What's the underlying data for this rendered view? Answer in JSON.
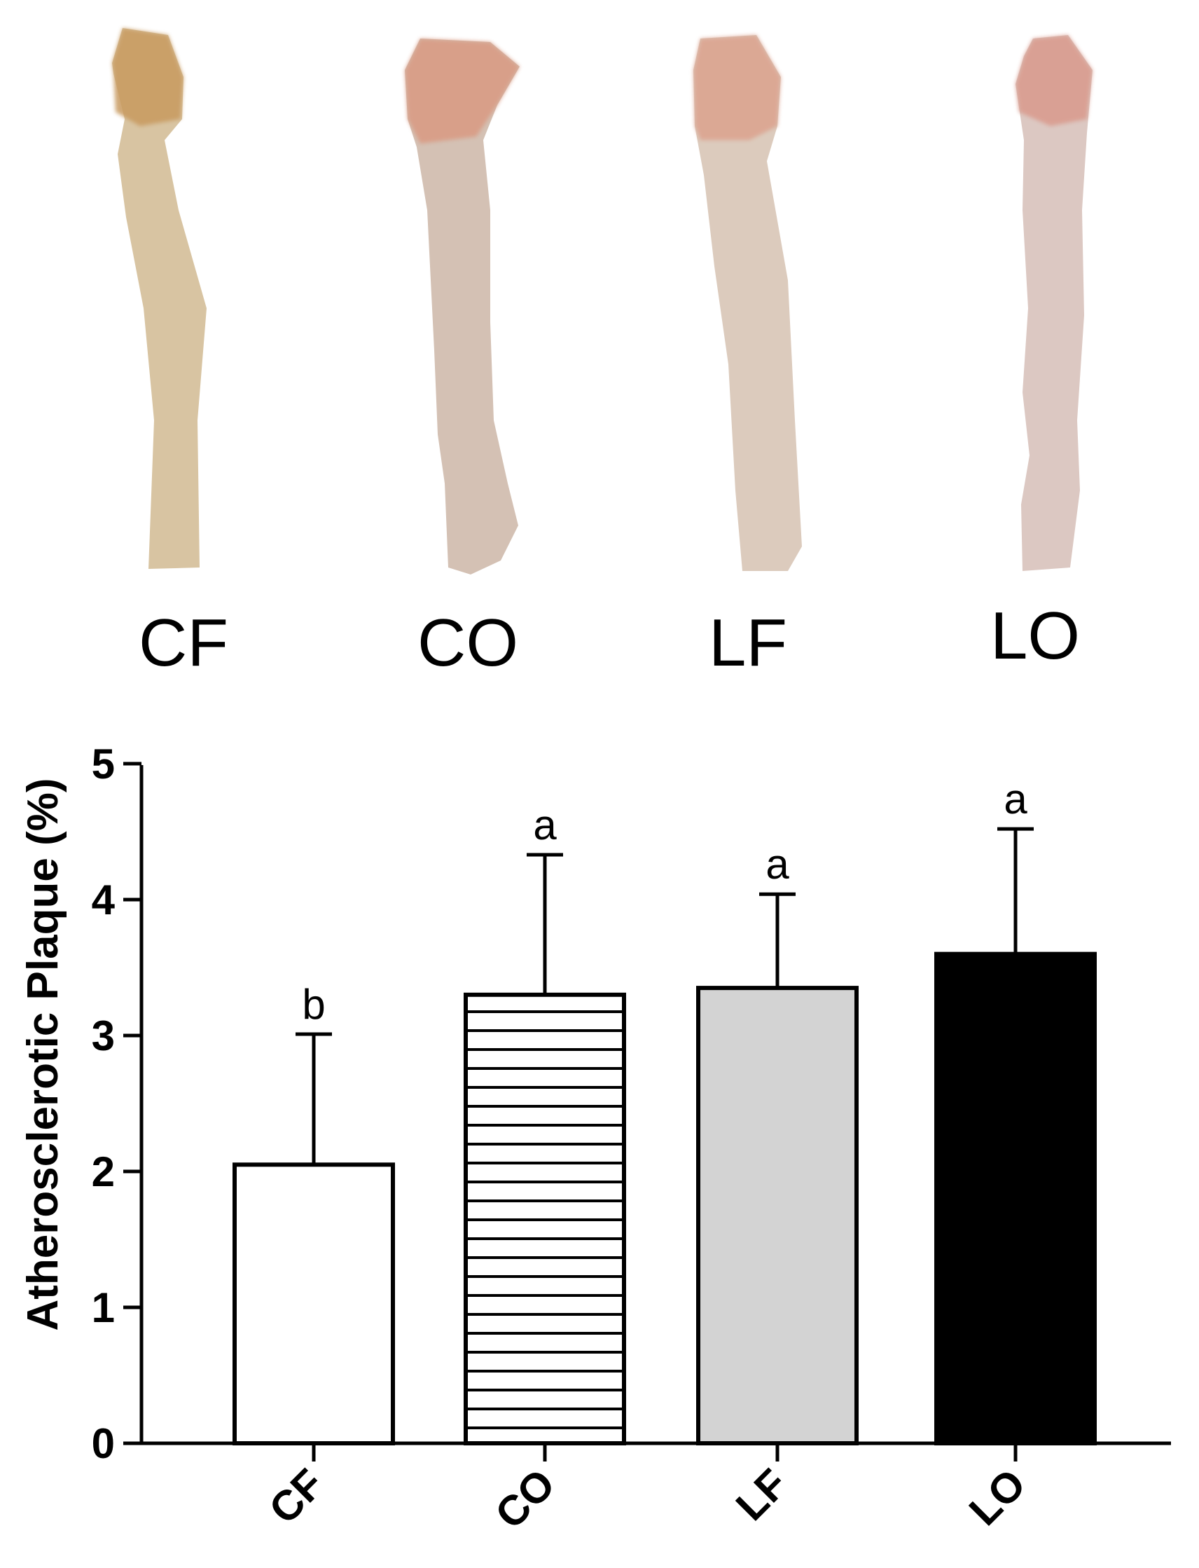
{
  "photos": {
    "labels": [
      "CF",
      "CO",
      "LF",
      "LO"
    ],
    "tissue_colors": [
      "#d8c4a2",
      "#d4c1b4",
      "#dccbbd",
      "#dcc8c2"
    ],
    "top_colors": [
      "#c89a5e",
      "#d99a82",
      "#dba28e",
      "#d99a8c"
    ]
  },
  "chart_data": {
    "type": "bar",
    "ylabel": "Atherosclerotic Plaque (%)",
    "categories": [
      "CF",
      "CO",
      "LF",
      "LO"
    ],
    "values": [
      2.05,
      3.3,
      3.35,
      3.6
    ],
    "errors": [
      0.96,
      1.03,
      0.69,
      0.92
    ],
    "significance": [
      "b",
      "a",
      "a",
      "a"
    ],
    "fills": [
      "#ffffff",
      "hatch-horizontal",
      "#d3d3d3",
      "#000000"
    ],
    "ylim": [
      0,
      5
    ],
    "yticks": [
      "0",
      "1",
      "2",
      "3",
      "4",
      "5"
    ],
    "grid": false,
    "legend": "none"
  }
}
